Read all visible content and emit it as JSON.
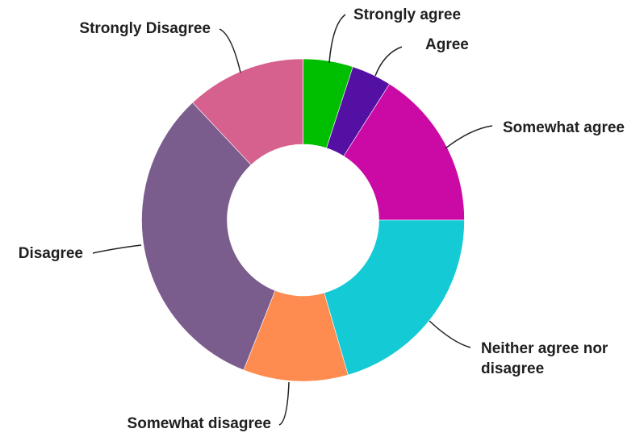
{
  "chart_data": {
    "type": "pie",
    "donut": true,
    "categories": [
      "Strongly agree",
      "Agree",
      "Somewhat agree",
      "Neither agree nor disagree",
      "Somewhat disagree",
      "Disagree",
      "Strongly Disagree"
    ],
    "values": [
      5.0,
      4.0,
      16.0,
      20.5,
      10.5,
      32.0,
      12.0
    ],
    "colors": [
      "#00bf00",
      "#540fa3",
      "#cb0aa6",
      "#13cad5",
      "#fe8b4f",
      "#7a5d8d",
      "#d6608e"
    ],
    "labels": [
      [
        "Strongly agree"
      ],
      [
        "Agree"
      ],
      [
        "Somewhat agree"
      ],
      [
        "Neither agree nor",
        "disagree"
      ],
      [
        "Somewhat disagree"
      ],
      [
        "Disagree"
      ],
      [
        "Strongly Disagree"
      ]
    ]
  }
}
